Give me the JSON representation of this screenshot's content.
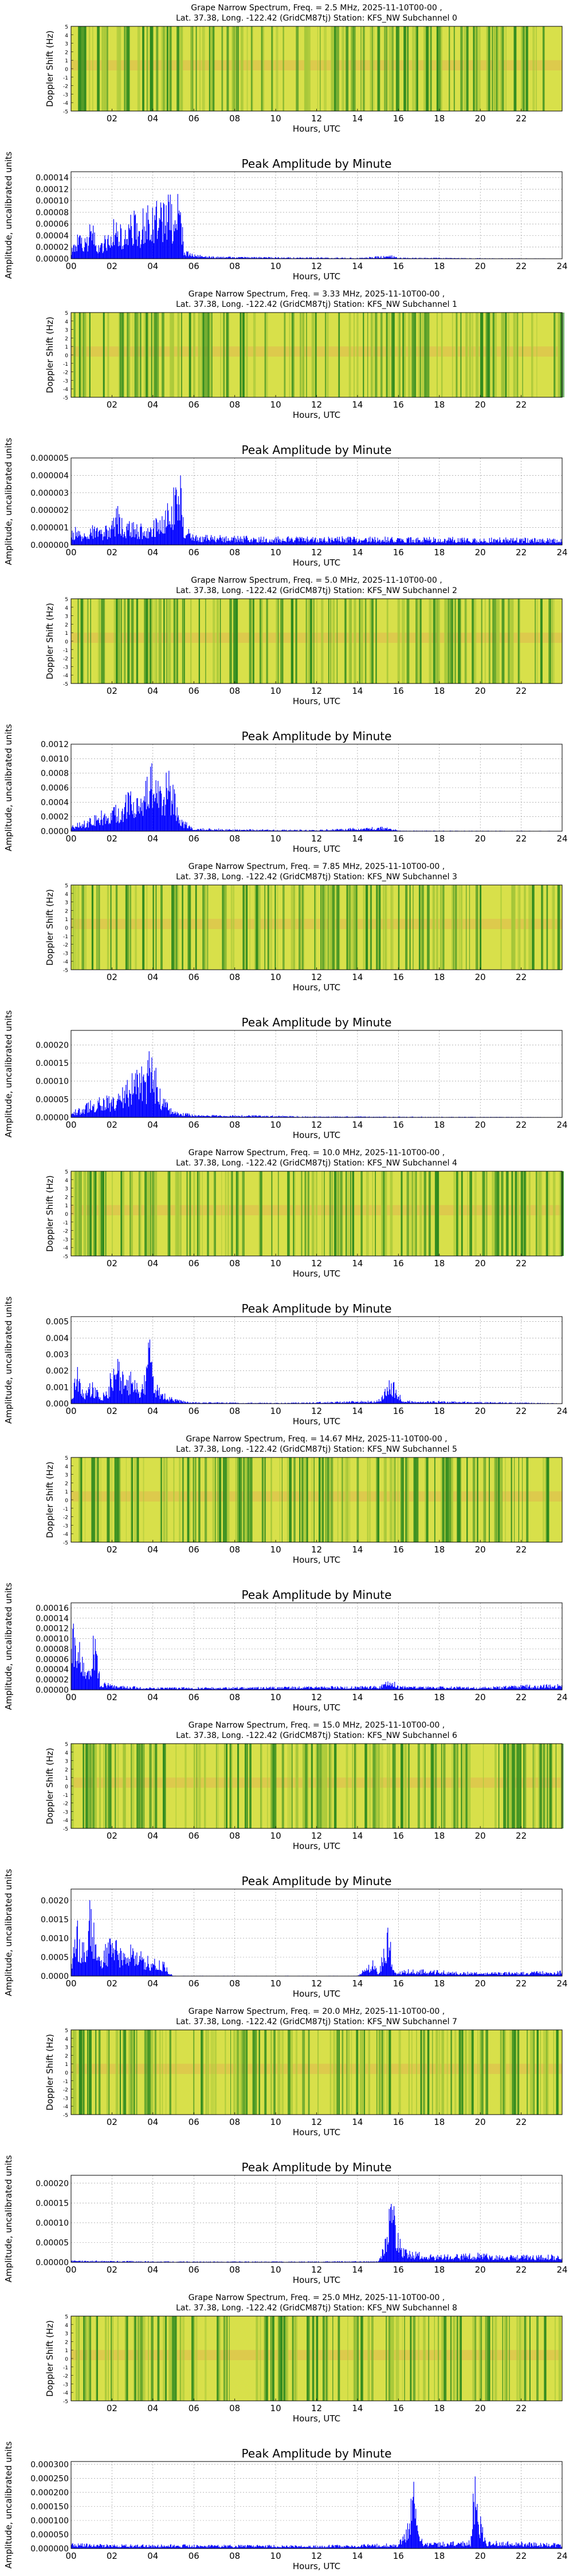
{
  "spectrum_common": {
    "ylabel": "Doppler Shift (Hz)",
    "xlabel": "Hours, UTC",
    "x_tick_labels": [
      "02",
      "04",
      "06",
      "08",
      "10",
      "12",
      "14",
      "16",
      "18",
      "20",
      "22"
    ]
  },
  "amplitude_common": {
    "title": "Peak Amplitude by Minute",
    "ylabel": "Amplitude, uncalibrated units",
    "xlabel": "Hours, UTC",
    "x_tick_labels": [
      "00",
      "02",
      "04",
      "06",
      "08",
      "10",
      "12",
      "14",
      "16",
      "18",
      "20",
      "22",
      "24"
    ]
  },
  "colors": {
    "bar": "#0000ff",
    "green": "#2f8a1f",
    "yellow": "#d8e04a",
    "orange": "#e8a050"
  },
  "subchannels": [
    {
      "title_line1": "Grape Narrow Spectrum, Freq. = 2.5 MHz, 2025-11-10T00-00 ,",
      "title_line2": "Lat.  37.38, Long. -122.42 (GridCM87tj) Station: KFS_NW Subchannel 0",
      "amp_ticks": [
        "0.00000",
        "0.00002",
        "0.00004",
        "0.00006",
        "0.00008",
        "0.00010",
        "0.00012",
        "0.00014"
      ],
      "chart_data": {
        "type": "bar",
        "ylim": [
          0,
          0.00015
        ],
        "x_range": [
          0,
          24
        ],
        "envelope": [
          [
            0.0,
            2e-05
          ],
          [
            0.3,
            5e-05
          ],
          [
            0.6,
            3e-05
          ],
          [
            0.9,
            6e-05
          ],
          [
            1.0,
            7e-05
          ],
          [
            1.3,
            3e-05
          ],
          [
            1.6,
            4e-05
          ],
          [
            1.9,
            6e-05
          ],
          [
            2.2,
            8e-05
          ],
          [
            2.5,
            5e-05
          ],
          [
            2.8,
            7e-05
          ],
          [
            3.0,
            9e-05
          ],
          [
            3.3,
            6e-05
          ],
          [
            3.6,
            0.00011
          ],
          [
            3.9,
            8e-05
          ],
          [
            4.1,
            0.00012
          ],
          [
            4.4,
            0.0001
          ],
          [
            4.6,
            0.000125
          ],
          [
            4.8,
            0.00013
          ],
          [
            5.0,
            8e-05
          ],
          [
            5.3,
            0.00013
          ],
          [
            5.5,
            2e-05
          ],
          [
            6.0,
            8e-06
          ],
          [
            7.0,
            4e-06
          ],
          [
            10.0,
            3e-06
          ],
          [
            14.0,
            2e-06
          ],
          [
            15.5,
            6e-06
          ],
          [
            15.7,
            7e-06
          ],
          [
            16.0,
            2e-06
          ],
          [
            24.0,
            5e-07
          ]
        ]
      }
    },
    {
      "title_line1": "Grape Narrow Spectrum, Freq. = 3.33 MHz, 2025-11-10T00-00 ,",
      "title_line2": "Lat.  37.38, Long. -122.42 (GridCM87tj) Station: KFS_NW Subchannel 1",
      "amp_ticks": [
        "0.000000",
        "0.000001",
        "0.000002",
        "0.000003",
        "0.000004",
        "0.000005"
      ],
      "chart_data": {
        "type": "bar",
        "ylim": [
          0,
          5e-06
        ],
        "x_range": [
          0,
          24
        ],
        "envelope": [
          [
            0.0,
            1.2e-06
          ],
          [
            0.5,
            8e-07
          ],
          [
            1.0,
            1.2e-06
          ],
          [
            1.5,
            1e-06
          ],
          [
            2.0,
            1.5e-06
          ],
          [
            2.3,
            2.5e-06
          ],
          [
            2.6,
            1.2e-06
          ],
          [
            3.0,
            1.5e-06
          ],
          [
            3.5,
            1.2e-06
          ],
          [
            4.0,
            1.8e-06
          ],
          [
            4.5,
            2e-06
          ],
          [
            5.0,
            3.5e-06
          ],
          [
            5.3,
            4.5e-06
          ],
          [
            5.5,
            1.5e-06
          ],
          [
            6.0,
            6e-07
          ],
          [
            10.0,
            5e-07
          ],
          [
            16.0,
            5e-07
          ],
          [
            24.0,
            4e-07
          ]
        ]
      }
    },
    {
      "title_line1": "Grape Narrow Spectrum, Freq. = 5.0 MHz, 2025-11-10T00-00 ,",
      "title_line2": "Lat.  37.38, Long. -122.42 (GridCM87tj) Station: KFS_NW Subchannel 2",
      "amp_ticks": [
        "0.0000",
        "0.0002",
        "0.0004",
        "0.0006",
        "0.0008",
        "0.0010",
        "0.0012"
      ],
      "chart_data": {
        "type": "bar",
        "ylim": [
          0,
          0.0012
        ],
        "x_range": [
          0,
          24
        ],
        "envelope": [
          [
            0.0,
            0.0001
          ],
          [
            0.5,
            0.00015
          ],
          [
            1.0,
            0.0002
          ],
          [
            1.5,
            0.0003
          ],
          [
            2.0,
            0.0004
          ],
          [
            2.3,
            0.00035
          ],
          [
            2.6,
            0.0005
          ],
          [
            3.0,
            0.0006
          ],
          [
            3.3,
            0.0005
          ],
          [
            3.6,
            0.0007
          ],
          [
            3.9,
            0.00105
          ],
          [
            4.2,
            0.0007
          ],
          [
            4.5,
            0.0008
          ],
          [
            4.8,
            0.00095
          ],
          [
            5.1,
            0.0006
          ],
          [
            5.3,
            0.0002
          ],
          [
            6.0,
            5e-05
          ],
          [
            8.0,
            3e-05
          ],
          [
            12.0,
            2e-05
          ],
          [
            15.5,
            7e-05
          ],
          [
            16.0,
            1e-05
          ],
          [
            24.0,
            5e-06
          ]
        ]
      }
    },
    {
      "title_line1": "Grape Narrow Spectrum, Freq. = 7.85 MHz, 2025-11-10T00-00 ,",
      "title_line2": "Lat.  37.38, Long. -122.42 (GridCM87tj) Station: KFS_NW Subchannel 3",
      "amp_ticks": [
        "0.00000",
        "0.00005",
        "0.00010",
        "0.00015",
        "0.00020"
      ],
      "chart_data": {
        "type": "bar",
        "ylim": [
          0,
          0.00024
        ],
        "x_range": [
          0,
          24
        ],
        "envelope": [
          [
            0.0,
            2e-05
          ],
          [
            0.5,
            3e-05
          ],
          [
            1.0,
            5e-05
          ],
          [
            1.5,
            7e-05
          ],
          [
            2.0,
            6e-05
          ],
          [
            2.5,
            0.0001
          ],
          [
            3.0,
            0.00013
          ],
          [
            3.3,
            0.00017
          ],
          [
            3.6,
            0.00012
          ],
          [
            3.9,
            0.00022
          ],
          [
            4.1,
            0.00015
          ],
          [
            4.3,
            9e-05
          ],
          [
            4.6,
            5e-05
          ],
          [
            5.0,
            2e-05
          ],
          [
            6.0,
            8e-06
          ],
          [
            9.5,
            6e-06
          ],
          [
            12.0,
            3e-06
          ],
          [
            24.0,
            1e-06
          ]
        ]
      }
    },
    {
      "title_line1": "Grape Narrow Spectrum, Freq. = 10.0 MHz, 2025-11-10T00-00 ,",
      "title_line2": "Lat.  37.38, Long. -122.42 (GridCM87tj) Station: KFS_NW Subchannel 4",
      "amp_ticks": [
        "0.000",
        "0.001",
        "0.002",
        "0.003",
        "0.004",
        "0.005"
      ],
      "chart_data": {
        "type": "bar",
        "ylim": [
          0,
          0.0053
        ],
        "x_range": [
          0,
          24
        ],
        "envelope": [
          [
            0.0,
            0.0005
          ],
          [
            0.3,
            0.0024
          ],
          [
            0.6,
            0.0008
          ],
          [
            1.0,
            0.0015
          ],
          [
            1.4,
            0.0005
          ],
          [
            1.8,
            0.001
          ],
          [
            2.0,
            0.0028
          ],
          [
            2.3,
            0.003
          ],
          [
            2.6,
            0.0015
          ],
          [
            3.0,
            0.0022
          ],
          [
            3.3,
            0.0012
          ],
          [
            3.6,
            0.002
          ],
          [
            3.85,
            0.005
          ],
          [
            4.1,
            0.0015
          ],
          [
            4.5,
            0.0008
          ],
          [
            5.0,
            0.0003
          ],
          [
            6.0,
            0.0001
          ],
          [
            10.0,
            5e-05
          ],
          [
            15.0,
            0.0002
          ],
          [
            15.6,
            0.0016
          ],
          [
            15.9,
            0.0012
          ],
          [
            16.2,
            0.0002
          ],
          [
            24.0,
            3e-05
          ]
        ]
      }
    },
    {
      "title_line1": "Grape Narrow Spectrum, Freq. = 14.67 MHz, 2025-11-10T00-00 ,",
      "title_line2": "Lat.  37.38, Long. -122.42 (GridCM87tj) Station: KFS_NW Subchannel 5",
      "amp_ticks": [
        "0.00000",
        "0.00002",
        "0.00004",
        "0.00006",
        "0.00008",
        "0.00010",
        "0.00012",
        "0.00014",
        "0.00016"
      ],
      "chart_data": {
        "type": "bar",
        "ylim": [
          0,
          0.00017
        ],
        "x_range": [
          0,
          24
        ],
        "envelope": [
          [
            0.0,
            0.00016
          ],
          [
            0.2,
            0.0001
          ],
          [
            0.4,
            0.00012
          ],
          [
            0.6,
            6e-05
          ],
          [
            0.8,
            4e-05
          ],
          [
            1.0,
            0.00011
          ],
          [
            1.2,
            0.00013
          ],
          [
            1.4,
            2e-05
          ],
          [
            2.0,
            1e-05
          ],
          [
            4.0,
            5e-06
          ],
          [
            15.0,
            8e-06
          ],
          [
            15.6,
            2.5e-05
          ],
          [
            16.0,
            8e-06
          ],
          [
            20.0,
            6e-06
          ],
          [
            22.0,
            1e-05
          ],
          [
            24.0,
            1.2e-05
          ]
        ]
      }
    },
    {
      "title_line1": "Grape Narrow Spectrum, Freq. = 15.0 MHz, 2025-11-10T00-00 ,",
      "title_line2": "Lat.  37.38, Long. -122.42 (GridCM87tj) Station: KFS_NW Subchannel 6",
      "amp_ticks": [
        "0.0000",
        "0.0005",
        "0.0010",
        "0.0015",
        "0.0020"
      ],
      "chart_data": {
        "type": "bar",
        "ylim": [
          0,
          0.0023
        ],
        "x_range": [
          0,
          24
        ],
        "envelope": [
          [
            0.0,
            0.0006
          ],
          [
            0.3,
            0.0015
          ],
          [
            0.6,
            0.0009
          ],
          [
            0.9,
            0.0022
          ],
          [
            1.2,
            0.0011
          ],
          [
            1.5,
            0.0008
          ],
          [
            2.0,
            0.0012
          ],
          [
            2.5,
            0.0007
          ],
          [
            3.0,
            0.0009
          ],
          [
            3.5,
            0.0006
          ],
          [
            4.0,
            0.0005
          ],
          [
            4.5,
            0.0004
          ],
          [
            4.8,
            0.00015
          ],
          [
            5.0,
            1e-05
          ],
          [
            14.0,
            1e-05
          ],
          [
            14.8,
            0.0005
          ],
          [
            15.0,
            8e-05
          ],
          [
            15.5,
            0.0014
          ],
          [
            15.8,
            0.0001
          ],
          [
            16.5,
            0.0002
          ],
          [
            20.0,
            0.0001
          ],
          [
            24.0,
            0.00015
          ]
        ]
      }
    },
    {
      "title_line1": "Grape Narrow Spectrum, Freq. = 20.0 MHz, 2025-11-10T00-00 ,",
      "title_line2": "Lat.  37.38, Long. -122.42 (GridCM87tj) Station: KFS_NW Subchannel 7",
      "amp_ticks": [
        "0.00000",
        "0.00005",
        "0.00010",
        "0.00015",
        "0.00020"
      ],
      "chart_data": {
        "type": "bar",
        "ylim": [
          0,
          0.00022
        ],
        "x_range": [
          0,
          24
        ],
        "envelope": [
          [
            0.0,
            5e-06
          ],
          [
            2.0,
            4e-06
          ],
          [
            6.0,
            2e-06
          ],
          [
            15.0,
            3e-06
          ],
          [
            15.3,
            5e-05
          ],
          [
            15.5,
            0.00015
          ],
          [
            15.7,
            0.0002
          ],
          [
            15.9,
            0.0001
          ],
          [
            16.2,
            4e-05
          ],
          [
            16.6,
            3e-05
          ],
          [
            18.0,
            2e-05
          ],
          [
            20.0,
            2.5e-05
          ],
          [
            22.0,
            2e-05
          ],
          [
            24.0,
            2e-05
          ]
        ]
      }
    },
    {
      "title_line1": "Grape Narrow Spectrum, Freq. = 25.0 MHz, 2025-11-10T00-00 ,",
      "title_line2": "Lat.  37.38, Long. -122.42 (GridCM87tj) Station: KFS_NW Subchannel 8",
      "amp_ticks": [
        "0.000000",
        "0.000050",
        "0.000100",
        "0.000150",
        "0.000200",
        "0.000250",
        "0.000300"
      ],
      "chart_data": {
        "type": "bar",
        "ylim": [
          0,
          0.00031
        ],
        "x_range": [
          0,
          24
        ],
        "envelope": [
          [
            0.0,
            2e-05
          ],
          [
            2.0,
            1.5e-05
          ],
          [
            6.0,
            1.5e-05
          ],
          [
            12.0,
            1.2e-05
          ],
          [
            16.0,
            2e-05
          ],
          [
            16.5,
            0.00012
          ],
          [
            16.7,
            0.0003
          ],
          [
            16.9,
            0.0001
          ],
          [
            17.2,
            2e-05
          ],
          [
            19.5,
            3e-05
          ],
          [
            19.7,
            0.00028
          ],
          [
            20.0,
            0.00012
          ],
          [
            20.3,
            3e-05
          ],
          [
            24.0,
            2e-05
          ]
        ]
      }
    }
  ]
}
